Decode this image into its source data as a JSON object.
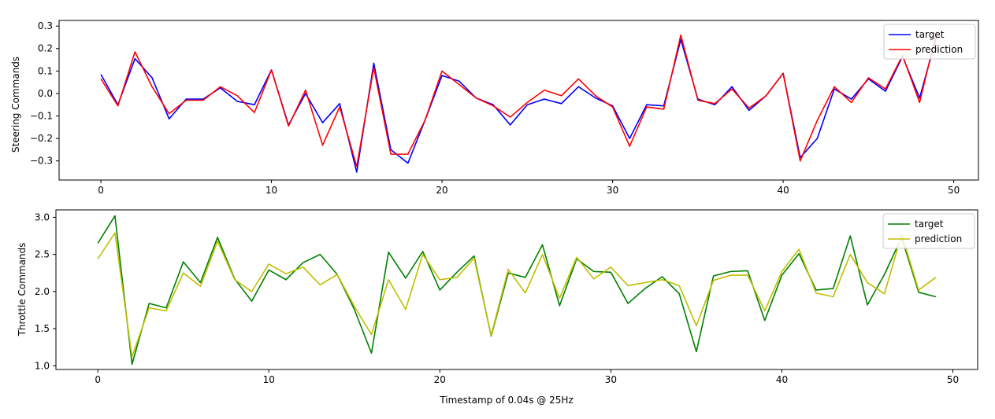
{
  "chart_data": [
    {
      "type": "line",
      "title": "",
      "xlabel": "",
      "ylabel": "Steering Commands",
      "xlim": [
        -2.45,
        51.45
      ],
      "ylim": [
        -0.385,
        0.325
      ],
      "xticks": [
        0,
        10,
        20,
        30,
        40,
        50
      ],
      "yticks": [
        -0.3,
        -0.2,
        -0.1,
        0.0,
        0.1,
        0.2,
        0.3
      ],
      "ytick_labels": [
        "−0.3",
        "−0.2",
        "−0.1",
        "0.0",
        "0.1",
        "0.2",
        "0.3"
      ],
      "grid": false,
      "legend": "top-right",
      "series": [
        {
          "name": "target",
          "color": "#0000ff",
          "x": [
            0,
            1,
            2,
            3,
            4,
            5,
            6,
            7,
            8,
            9,
            10,
            11,
            12,
            13,
            14,
            15,
            16,
            17,
            18,
            19,
            20,
            21,
            22,
            23,
            24,
            25,
            26,
            27,
            28,
            29,
            30,
            31,
            32,
            33,
            34,
            35,
            36,
            37,
            38,
            39,
            40,
            41,
            42,
            43,
            44,
            45,
            46,
            47,
            48,
            49
          ],
          "values": [
            0.085,
            -0.05,
            0.155,
            0.07,
            -0.113,
            -0.025,
            -0.025,
            0.025,
            -0.035,
            -0.05,
            0.105,
            -0.14,
            0.0,
            -0.13,
            -0.045,
            -0.35,
            0.135,
            -0.25,
            -0.31,
            -0.12,
            0.08,
            0.055,
            -0.02,
            -0.05,
            -0.14,
            -0.05,
            -0.025,
            -0.045,
            0.03,
            -0.02,
            -0.055,
            -0.2,
            -0.05,
            -0.055,
            0.24,
            -0.025,
            -0.05,
            0.03,
            -0.075,
            -0.01,
            0.09,
            -0.285,
            -0.2,
            0.02,
            -0.025,
            0.065,
            0.01,
            0.165,
            -0.02,
            0.255
          ]
        },
        {
          "name": "prediction",
          "color": "#ff0000",
          "x": [
            0,
            1,
            2,
            3,
            4,
            5,
            6,
            7,
            8,
            9,
            10,
            11,
            12,
            13,
            14,
            15,
            16,
            17,
            18,
            19,
            20,
            21,
            22,
            23,
            24,
            25,
            26,
            27,
            28,
            29,
            30,
            31,
            32,
            33,
            34,
            35,
            36,
            37,
            38,
            39,
            40,
            41,
            42,
            43,
            44,
            45,
            46,
            47,
            48,
            49
          ],
          "values": [
            0.065,
            -0.055,
            0.185,
            0.03,
            -0.09,
            -0.03,
            -0.03,
            0.03,
            -0.01,
            -0.085,
            0.105,
            -0.145,
            0.015,
            -0.23,
            -0.06,
            -0.325,
            0.115,
            -0.27,
            -0.27,
            -0.12,
            0.1,
            0.04,
            -0.02,
            -0.055,
            -0.105,
            -0.04,
            0.015,
            -0.01,
            0.065,
            -0.01,
            -0.06,
            -0.235,
            -0.06,
            -0.07,
            0.26,
            -0.03,
            -0.045,
            0.02,
            -0.065,
            -0.01,
            0.09,
            -0.3,
            -0.12,
            0.03,
            -0.04,
            0.07,
            0.02,
            0.17,
            -0.04,
            0.275
          ]
        }
      ]
    },
    {
      "type": "line",
      "title": "",
      "xlabel": "Timestamp of 0.04s @ 25Hz",
      "ylabel": "Throttle Commands",
      "xlim": [
        -2.45,
        51.45
      ],
      "ylim": [
        0.95,
        3.1
      ],
      "xticks": [
        0,
        10,
        20,
        30,
        40,
        50
      ],
      "yticks": [
        1.0,
        1.5,
        2.0,
        2.5,
        3.0
      ],
      "ytick_labels": [
        "1.0",
        "1.5",
        "2.0",
        "2.5",
        "3.0"
      ],
      "grid": false,
      "legend": "top-right",
      "series": [
        {
          "name": "target",
          "color": "#008000",
          "x": [
            0,
            1,
            2,
            3,
            4,
            5,
            6,
            7,
            8,
            9,
            10,
            11,
            12,
            13,
            14,
            15,
            16,
            17,
            18,
            19,
            20,
            21,
            22,
            23,
            24,
            25,
            26,
            27,
            28,
            29,
            30,
            31,
            32,
            33,
            34,
            35,
            36,
            37,
            38,
            39,
            40,
            41,
            42,
            43,
            44,
            45,
            46,
            47,
            48,
            49
          ],
          "values": [
            2.65,
            3.02,
            1.02,
            1.84,
            1.78,
            2.4,
            2.12,
            2.73,
            2.17,
            1.87,
            2.29,
            2.16,
            2.39,
            2.5,
            2.23,
            1.76,
            1.17,
            2.53,
            2.18,
            2.54,
            2.02,
            2.26,
            2.48,
            1.4,
            2.25,
            2.19,
            2.63,
            1.81,
            2.44,
            2.27,
            2.26,
            1.84,
            2.04,
            2.2,
            1.97,
            1.19,
            2.21,
            2.27,
            2.28,
            1.61,
            2.22,
            2.51,
            2.02,
            2.04,
            2.75,
            1.82,
            2.23,
            2.73,
            1.99,
            1.93
          ]
        },
        {
          "name": "prediction",
          "color": "#bfbf00",
          "x": [
            0,
            1,
            2,
            3,
            4,
            5,
            6,
            7,
            8,
            9,
            10,
            11,
            12,
            13,
            14,
            15,
            16,
            17,
            18,
            19,
            20,
            21,
            22,
            23,
            24,
            25,
            26,
            27,
            28,
            29,
            30,
            31,
            32,
            33,
            34,
            35,
            36,
            37,
            38,
            39,
            40,
            41,
            42,
            43,
            44,
            45,
            46,
            47,
            48,
            49
          ],
          "values": [
            2.44,
            2.79,
            1.12,
            1.78,
            1.74,
            2.25,
            2.07,
            2.68,
            2.16,
            2.0,
            2.37,
            2.24,
            2.33,
            2.09,
            2.23,
            1.8,
            1.42,
            2.16,
            1.76,
            2.5,
            2.16,
            2.19,
            2.45,
            1.41,
            2.3,
            1.98,
            2.5,
            1.91,
            2.46,
            2.17,
            2.33,
            2.08,
            2.12,
            2.16,
            2.08,
            1.54,
            2.15,
            2.22,
            2.22,
            1.74,
            2.27,
            2.57,
            1.98,
            1.93,
            2.5,
            2.12,
            1.97,
            2.77,
            2.02,
            2.19
          ]
        }
      ]
    }
  ]
}
